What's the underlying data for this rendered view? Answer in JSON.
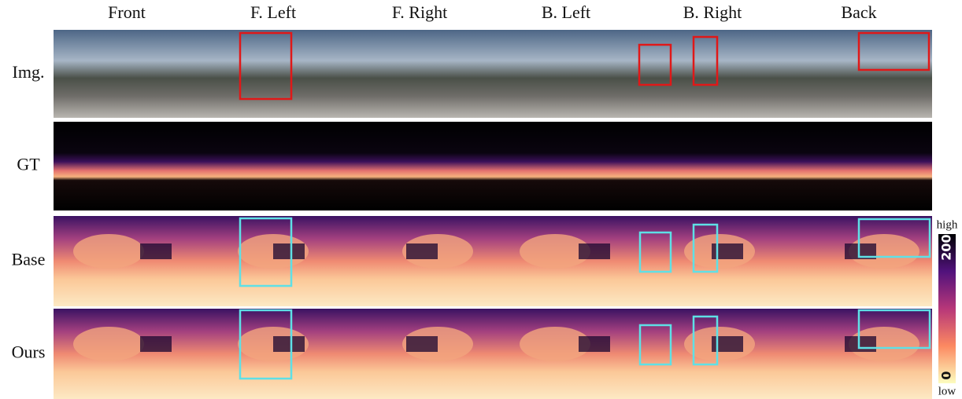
{
  "columns": [
    "Front",
    "F. Left",
    "F. Right",
    "B. Left",
    "B. Right",
    "Back"
  ],
  "rows": [
    "Img.",
    "GT",
    "Base",
    "Ours"
  ],
  "colorbar": {
    "high": "high",
    "low": "low",
    "ticks": [
      200,
      0
    ]
  }
}
